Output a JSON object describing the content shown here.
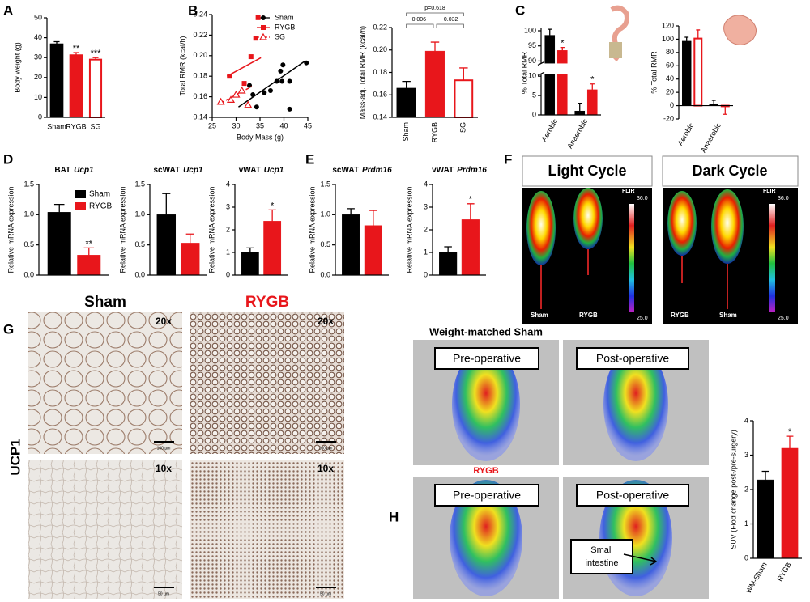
{
  "chart_data": [
    {
      "type": "bar",
      "ylabel": "Body weight (g)",
      "categories": [
        "Sham",
        "RYGB",
        "SG"
      ],
      "values": [
        37,
        31.5,
        29
      ],
      "errors": [
        1,
        1,
        1
      ],
      "colors": [
        "#000000",
        "#e8161b",
        "#e8161b"
      ],
      "hollow": [
        false,
        false,
        true
      ],
      "significance": [
        null,
        "**",
        "***"
      ],
      "ylim": [
        0,
        50
      ],
      "yticks": [
        0,
        10,
        20,
        30,
        40,
        50
      ]
    },
    {
      "type": "scatter",
      "xlabel": "Body Mass (g)",
      "ylabel": "Total RMR (kcal/h)",
      "xlim": [
        25,
        45
      ],
      "xticks": [
        25,
        30,
        35,
        40,
        45
      ],
      "ylim": [
        0.14,
        0.24
      ],
      "yticks": [
        0.14,
        0.16,
        0.18,
        {
          "value": 0.2,
          "label": "0.20"
        },
        0.22,
        0.24
      ],
      "series": [
        {
          "name": "Sham",
          "color": "#000000",
          "marker": "circle",
          "x": [
            34.3,
            35.9,
            37.2,
            38.5,
            39.8,
            39.3,
            39.6,
            41.2,
            41.2,
            44.7,
            32.8,
            33.5
          ],
          "y": [
            0.15,
            0.164,
            0.166,
            0.175,
            0.191,
            0.185,
            0.175,
            0.175,
            0.148,
            0.193,
            0.171,
            0.162
          ],
          "trend_x": [
            30.5,
            44.5
          ],
          "trend_y": [
            0.15,
            0.195
          ]
        },
        {
          "name": "RYGB",
          "color": "#e8161b",
          "marker": "square",
          "x": [
            34.6,
            34.1,
            33.1,
            28.6,
            31.7
          ],
          "y": [
            0.237,
            0.217,
            0.199,
            0.18,
            0.173
          ],
          "trend_x": [
            28.1,
            35.2
          ],
          "trend_y": [
            0.18,
            0.198
          ]
        },
        {
          "name": "SG",
          "color": "#e8161b",
          "marker": "triangle",
          "dashed": true,
          "x": [
            26.8,
            28.9,
            30,
            31.2,
            32.5
          ],
          "y": [
            0.155,
            0.157,
            0.162,
            0.166,
            0.152
          ],
          "trend_x": [
            26.8,
            33.3
          ],
          "trend_y": [
            0.154,
            0.17
          ]
        }
      ]
    },
    {
      "type": "bar",
      "ylabel": "Mass-adj. Total RMR (kcal/h)",
      "categories": [
        "Sham",
        "RYGB",
        "SG"
      ],
      "values": [
        0.166,
        0.199,
        0.173
      ],
      "errors": [
        0.006,
        0.008,
        0.011
      ],
      "colors": [
        "#000000",
        "#e8161b",
        "#e8161b"
      ],
      "hollow": [
        false,
        false,
        true
      ],
      "ylim": [
        0.14,
        0.22
      ],
      "yticks": [
        0.14,
        0.16,
        0.18,
        {
          "value": 0.2,
          "label": "0.20"
        },
        0.22
      ],
      "comparisons": [
        {
          "label": "p=0.618",
          "pair": [
            "Sham",
            "SG"
          ]
        },
        {
          "label": "0.006",
          "pair": [
            "Sham",
            "RYGB"
          ]
        },
        {
          "label": "0.032",
          "pair": [
            "RYGB",
            "SG"
          ]
        }
      ]
    },
    {
      "type": "bar",
      "ylabel": "% Total RMR",
      "categories": [
        "Aerobic",
        "Anaerobic"
      ],
      "ylim_lower": [
        0,
        10
      ],
      "ylim_upper": [
        90,
        100
      ],
      "yticks": [
        0,
        5,
        10,
        90,
        95,
        100
      ],
      "series": [
        {
          "color": "#000000",
          "values": [
            98.5,
            1
          ],
          "errors": [
            2,
            2
          ]
        },
        {
          "color": "#e8161b",
          "values": [
            93.5,
            6.5
          ],
          "errors": [
            1,
            1.5
          ],
          "significance": [
            "*",
            "*"
          ]
        }
      ]
    },
    {
      "type": "bar",
      "ylabel": "% Total RMR",
      "categories": [
        "Aerobic",
        "Anaerobic"
      ],
      "ylim": [
        -20,
        120
      ],
      "yticks": [
        -20,
        0,
        20,
        40,
        60,
        80,
        100,
        120
      ],
      "series": [
        {
          "color": "#000000",
          "values": [
            97,
            2
          ],
          "errors": [
            6,
            6
          ]
        },
        {
          "color": "#e8161b",
          "hollow": true,
          "values": [
            101,
            -1
          ],
          "errors": [
            13,
            12
          ]
        }
      ]
    },
    {
      "type": "bar",
      "title": "BAT",
      "gene": "Ucp1",
      "ylabel": "Relative mRNA expression",
      "legend": true,
      "ylim": [
        0,
        1.5
      ],
      "yticks": [
        {
          "value": 0,
          "label": "0.0"
        },
        0.5,
        {
          "value": 1,
          "label": "1.0"
        },
        1.5
      ],
      "series": [
        {
          "name": "Sham",
          "color": "#000000",
          "values": [
            1.04
          ],
          "errors": [
            0.13
          ]
        },
        {
          "name": "RYGB",
          "color": "#e8161b",
          "values": [
            0.33
          ],
          "errors": [
            0.12
          ],
          "significance": [
            "**"
          ]
        }
      ]
    },
    {
      "type": "bar",
      "title": "scWAT",
      "gene": "Ucp1",
      "ylabel": "Relative mRNA expression",
      "ylim": [
        0,
        1.5
      ],
      "yticks": [
        {
          "value": 0,
          "label": "0.0"
        },
        0.5,
        {
          "value": 1,
          "label": "1.0"
        },
        1.5
      ],
      "series": [
        {
          "color": "#000000",
          "values": [
            1.0
          ],
          "errors": [
            0.35
          ]
        },
        {
          "color": "#e8161b",
          "values": [
            0.53
          ],
          "errors": [
            0.15
          ]
        }
      ]
    },
    {
      "type": "bar",
      "title": "vWAT",
      "gene": "Ucp1",
      "ylabel": "Relative mRNA expression",
      "ylim": [
        0,
        4
      ],
      "yticks": [
        0,
        1,
        2,
        3,
        4
      ],
      "series": [
        {
          "color": "#000000",
          "values": [
            1.0
          ],
          "errors": [
            0.2
          ]
        },
        {
          "color": "#e8161b",
          "values": [
            2.38
          ],
          "errors": [
            0.5
          ],
          "significance": [
            "*"
          ]
        }
      ]
    },
    {
      "type": "bar",
      "title": "scWAT",
      "gene": "Prdm16",
      "ylabel": "Relative mRNA expression",
      "ylim": [
        0,
        1.5
      ],
      "yticks": [
        {
          "value": 0,
          "label": "0.0"
        },
        0.5,
        {
          "value": 1,
          "label": "1.0"
        },
        1.5
      ],
      "series": [
        {
          "color": "#000000",
          "values": [
            1.0
          ],
          "errors": [
            0.1
          ]
        },
        {
          "color": "#e8161b",
          "values": [
            0.82
          ],
          "errors": [
            0.25
          ]
        }
      ]
    },
    {
      "type": "bar",
      "title": "vWAT",
      "gene": "Prdm16",
      "ylabel": "Relative mRNA expression",
      "ylim": [
        0,
        4
      ],
      "yticks": [
        0,
        1,
        2,
        3,
        4
      ],
      "series": [
        {
          "color": "#000000",
          "values": [
            1.0
          ],
          "errors": [
            0.25
          ]
        },
        {
          "color": "#e8161b",
          "values": [
            2.45
          ],
          "errors": [
            0.7
          ],
          "significance": [
            "*"
          ]
        }
      ]
    },
    {
      "type": "bar",
      "ylabel": "SUV (Flod change post-/pre-surgery)",
      "categories": [
        "WM-Sham",
        "RYGB"
      ],
      "values": [
        2.28,
        3.2
      ],
      "errors": [
        0.25,
        0.35
      ],
      "colors": [
        "#000000",
        "#e8161b"
      ],
      "significance": [
        null,
        "*"
      ],
      "ylim": [
        0,
        4
      ],
      "yticks": [
        0,
        1,
        2,
        3,
        4
      ]
    }
  ],
  "panels": {
    "letters": [
      "A",
      "B",
      "C",
      "D",
      "E",
      "F",
      "G",
      "H"
    ],
    "F": {
      "light": "Light Cycle",
      "dark": "Dark Cycle",
      "light_labels": [
        "Sham",
        "RYGB"
      ],
      "dark_labels": [
        "RYGB",
        "Sham"
      ],
      "flir": [
        "FLIR",
        "FLIR"
      ],
      "scale_max": [
        "36.0",
        "36.0"
      ],
      "scale_min": [
        "25.0",
        "25.0"
      ]
    },
    "G": {
      "sham": "Sham",
      "rygb": "RYGB",
      "stain": "UCP1",
      "magnification": [
        "20x",
        "20x",
        "10x",
        "10x"
      ],
      "scale_bars": [
        "100 µm",
        "100 µm",
        "50 µm",
        "50 µm"
      ]
    },
    "H": {
      "top_title": "Weight-matched Sham",
      "bottom_title": "RYGB",
      "stages": [
        "Pre-operative",
        "Post-operative",
        "Pre-operative",
        "Post-operative"
      ],
      "callout": [
        "Small",
        "intestine"
      ]
    }
  }
}
